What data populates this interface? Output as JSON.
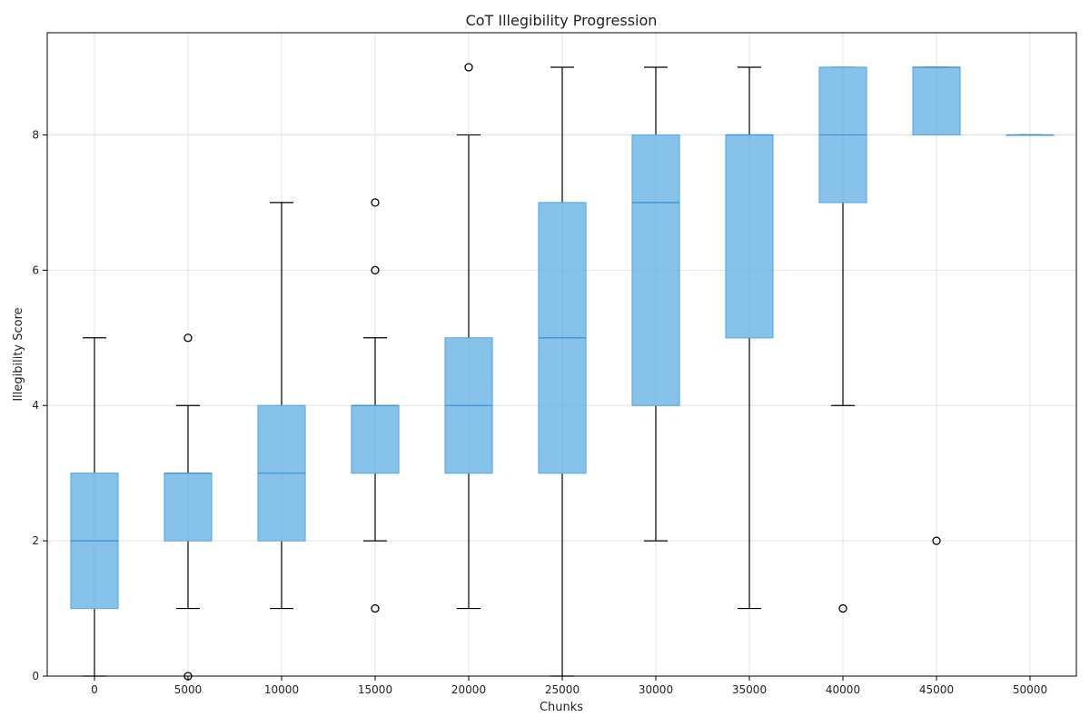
{
  "chart_data": {
    "type": "box",
    "title": "CoT Illegibility Progression",
    "xlabel": "Chunks",
    "ylabel": "Illegibility Score",
    "ylim": [
      0,
      9.5
    ],
    "yticks": [
      0,
      2,
      4,
      6,
      8
    ],
    "grid": true,
    "box_color": "#5DADE2",
    "box_opacity": 0.75,
    "whisker_color": "#000000",
    "boxes": [
      {
        "category": "0",
        "whislo": 0,
        "q1": 1,
        "med": 2,
        "q3": 3,
        "whishi": 5,
        "fliers": []
      },
      {
        "category": "5000",
        "whislo": 1,
        "q1": 2,
        "med": 3,
        "q3": 3,
        "whishi": 4,
        "fliers": [
          0,
          5
        ]
      },
      {
        "category": "10000",
        "whislo": 1,
        "q1": 2,
        "med": 3,
        "q3": 4,
        "whishi": 7,
        "fliers": []
      },
      {
        "category": "15000",
        "whislo": 2,
        "q1": 3,
        "med": 4,
        "q3": 4,
        "whishi": 5,
        "fliers": [
          1,
          6,
          7
        ]
      },
      {
        "category": "20000",
        "whislo": 1,
        "q1": 3,
        "med": 4,
        "q3": 5,
        "whishi": 8,
        "fliers": [
          9
        ]
      },
      {
        "category": "25000",
        "whislo": 0,
        "q1": 3,
        "med": 5,
        "q3": 7,
        "whishi": 9,
        "fliers": []
      },
      {
        "category": "30000",
        "whislo": 2,
        "q1": 4,
        "med": 7,
        "q3": 8,
        "whishi": 9,
        "fliers": []
      },
      {
        "category": "35000",
        "whislo": 1,
        "q1": 5,
        "med": 8,
        "q3": 8,
        "whishi": 9,
        "fliers": []
      },
      {
        "category": "40000",
        "whislo": 4,
        "q1": 7,
        "med": 8,
        "q3": 9,
        "whishi": 9,
        "fliers": [
          1
        ]
      },
      {
        "category": "45000",
        "whislo": 8,
        "q1": 8,
        "med": 9,
        "q3": 9,
        "whishi": 9,
        "fliers": [
          2
        ]
      },
      {
        "category": "50000",
        "whislo": 8,
        "q1": 8,
        "med": 8,
        "q3": 8,
        "whishi": 8,
        "fliers": []
      }
    ]
  }
}
